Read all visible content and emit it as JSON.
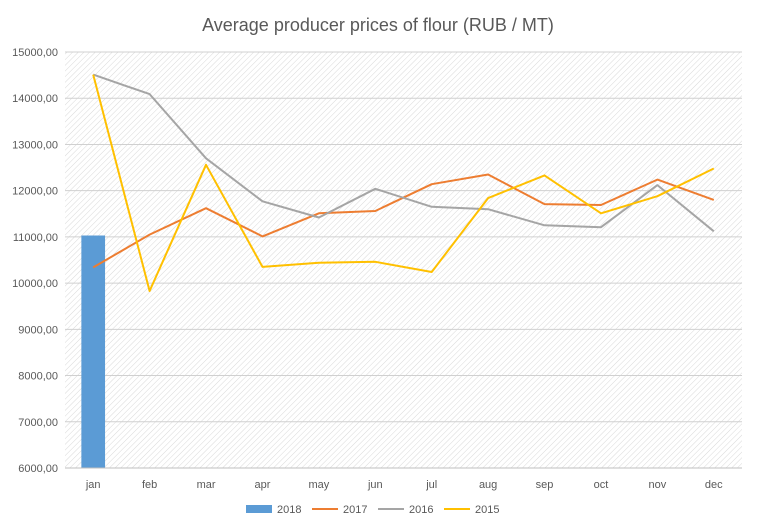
{
  "chart_data": {
    "type": "bar+line",
    "title": "Average producer prices of flour (RUB / MT)",
    "xlabel": "",
    "ylabel": "",
    "categories": [
      "jan",
      "feb",
      "mar",
      "apr",
      "may",
      "jun",
      "jul",
      "aug",
      "sep",
      "oct",
      "nov",
      "dec"
    ],
    "ylim": [
      6000,
      15000
    ],
    "yticks": [
      6000,
      7000,
      8000,
      9000,
      10000,
      11000,
      12000,
      13000,
      14000,
      15000
    ],
    "ytick_labels": [
      "6000,00",
      "7000,00",
      "8000,00",
      "9000,00",
      "10000,00",
      "11000,00",
      "12000,00",
      "13000,00",
      "14000,00",
      "15000,00"
    ],
    "grid": true,
    "legend_position": "bottom",
    "series": [
      {
        "name": "2018",
        "type": "bar",
        "color": "#5B9BD5",
        "values": [
          11030,
          null,
          null,
          null,
          null,
          null,
          null,
          null,
          null,
          null,
          null,
          null
        ]
      },
      {
        "name": "2017",
        "type": "line",
        "color": "#ED7D31",
        "values": [
          10340,
          11050,
          11620,
          11010,
          11510,
          11560,
          12140,
          12350,
          11710,
          11690,
          12240,
          11800
        ]
      },
      {
        "name": "2016",
        "type": "line",
        "color": "#A5A5A5",
        "values": [
          14510,
          14090,
          12700,
          11770,
          11420,
          12040,
          11650,
          11600,
          11250,
          11210,
          12120,
          11120
        ]
      },
      {
        "name": "2015",
        "type": "line",
        "color": "#FFC000",
        "values": [
          14510,
          9830,
          12560,
          10350,
          10440,
          10460,
          10240,
          11840,
          12330,
          11510,
          11880,
          12480
        ]
      }
    ]
  }
}
